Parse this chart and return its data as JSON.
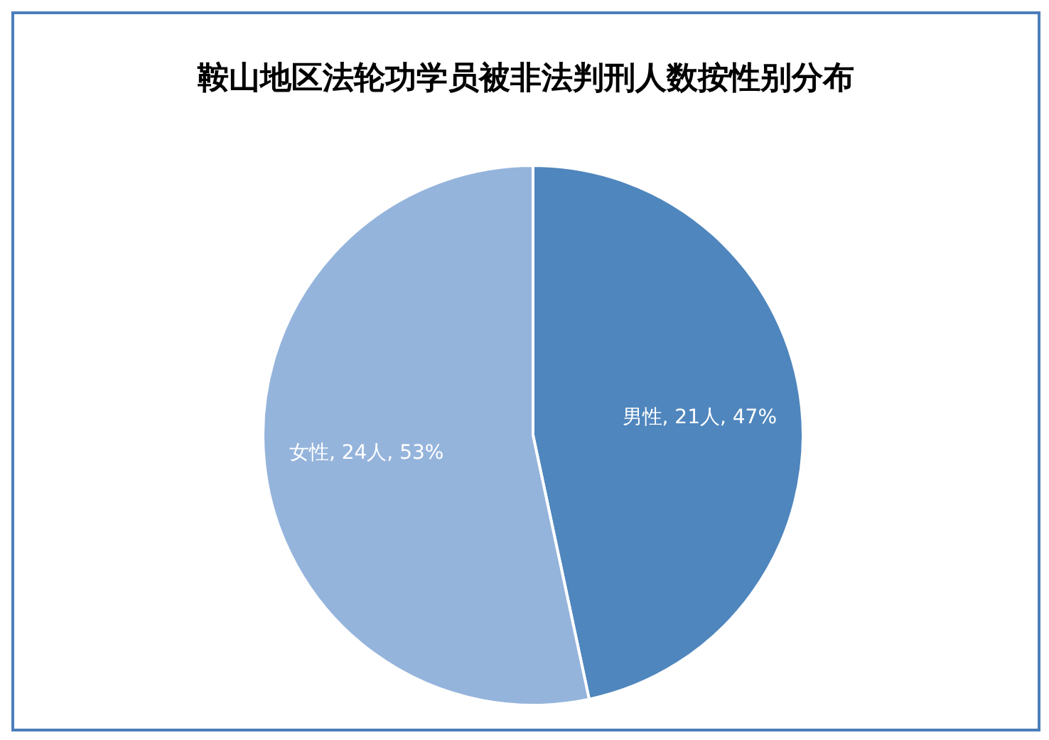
{
  "chart_data": {
    "type": "pie",
    "title": "鞍山地区法轮功学员被非法判刑人数按性别分布",
    "categories": [
      "男性",
      "女性"
    ],
    "values": [
      21,
      24
    ],
    "value_labels": [
      "21人, 47%",
      "24人, 53%"
    ],
    "colors": [
      "#4f86bd",
      "#95b4dc"
    ],
    "legend": false
  }
}
